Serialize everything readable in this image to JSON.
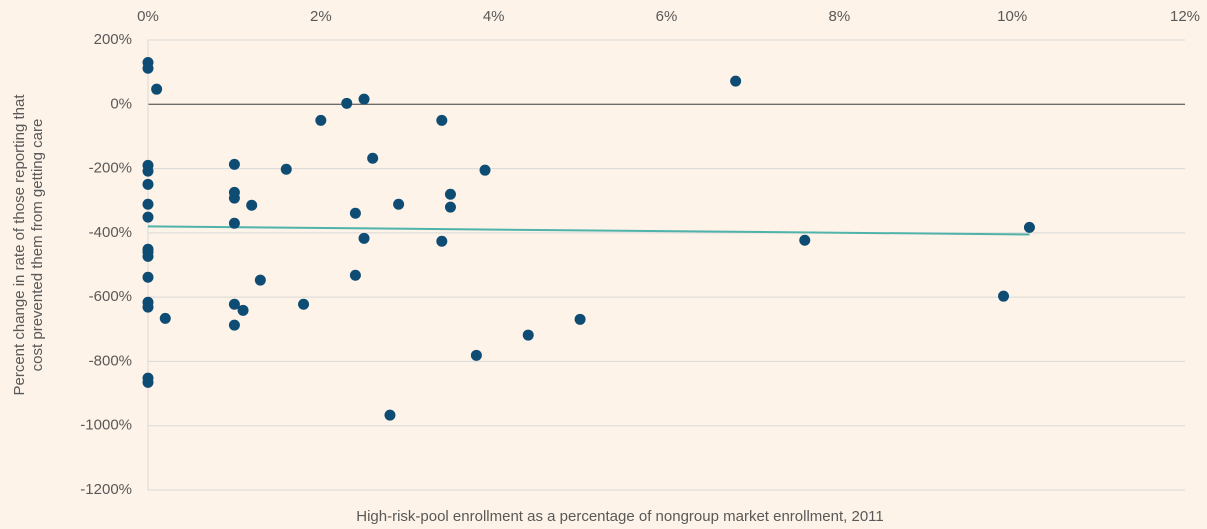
{
  "chart_data": {
    "type": "scatter",
    "ylabel": [
      "Percent change in rate of those reporting that",
      "cost prevented them from getting care"
    ],
    "xlabel": "High-risk-pool enrollment as a percentage of nongroup market enrollment, 2011",
    "xlim": [
      0,
      12
    ],
    "xticks": [
      {
        "value": 0,
        "label": "0%"
      },
      {
        "value": 2,
        "label": "2%"
      },
      {
        "value": 4,
        "label": "4%"
      },
      {
        "value": 6,
        "label": "6%"
      },
      {
        "value": 8,
        "label": "8%"
      },
      {
        "value": 10,
        "label": "10%"
      },
      {
        "value": 12,
        "label": "12%"
      }
    ],
    "ylim": [
      -1200,
      200
    ],
    "yticks": [
      {
        "value": 200,
        "label": "200%"
      },
      {
        "value": 0,
        "label": "0%"
      },
      {
        "value": -200,
        "label": "-200%"
      },
      {
        "value": -400,
        "label": "-400%"
      },
      {
        "value": -600,
        "label": "-600%"
      },
      {
        "value": -800,
        "label": "-800%"
      },
      {
        "value": -1000,
        "label": "-1000%"
      },
      {
        "value": -1200,
        "label": "-1200%"
      }
    ],
    "grid": true,
    "color": "#0e4c73",
    "x": [
      0,
      0,
      0.1,
      0,
      0,
      0,
      0,
      0,
      0,
      0,
      0,
      0,
      0,
      0,
      0.2,
      0,
      0,
      1.0,
      1.0,
      1.0,
      1.0,
      1.0,
      1.0,
      1.1,
      1.2,
      1.3,
      1.6,
      1.8,
      2.0,
      2.3,
      2.5,
      2.6,
      2.4,
      2.5,
      2.4,
      2.9,
      2.8,
      3.4,
      3.5,
      3.5,
      3.4,
      3.9,
      3.8,
      4.4,
      5.0,
      6.8,
      7.6,
      9.9,
      10.2
    ],
    "y": [
      130,
      112,
      47,
      -190,
      -208,
      -249,
      -311,
      -351,
      -451,
      -460,
      -473,
      -538,
      -616,
      -631,
      -666,
      -852,
      -865,
      -187,
      -274,
      -292,
      -370,
      -622,
      -687,
      -641,
      -314,
      -547,
      -202,
      -622,
      -50,
      3,
      16,
      -168,
      -339,
      -417,
      -532,
      -311,
      -967,
      -50,
      -280,
      -320,
      -426,
      -205,
      -781,
      -718,
      -669,
      72,
      -423,
      -597,
      -383
    ],
    "trendline": {
      "color": "#4fb3aa",
      "x": [
        0,
        10.2
      ],
      "y": [
        -380,
        -405
      ]
    }
  }
}
